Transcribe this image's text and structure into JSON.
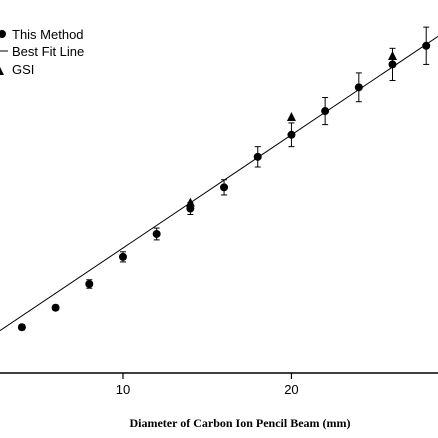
{
  "chart_data": {
    "type": "scatter",
    "xlabel": "Diameter of Carbon Ion Pencil Beam (mm)",
    "ylabel": "",
    "x_ticks": [
      10,
      20
    ],
    "xlim": [
      2.7,
      28.7
    ],
    "ylim": [
      0,
      22
    ],
    "grid": false,
    "legend_position": "top-left",
    "legend": [
      "This Method",
      "Best Fit Line",
      "GSI"
    ],
    "series": [
      {
        "name": "This Method",
        "marker": "circle",
        "points": [
          {
            "x": 4,
            "y": 2.7,
            "err": 0.15
          },
          {
            "x": 6,
            "y": 3.85,
            "err": 0.15
          },
          {
            "x": 8,
            "y": 5.25,
            "err": 0.25
          },
          {
            "x": 10,
            "y": 6.85,
            "err": 0.3
          },
          {
            "x": 12,
            "y": 8.2,
            "err": 0.35
          },
          {
            "x": 14,
            "y": 9.7,
            "err": 0.35
          },
          {
            "x": 16,
            "y": 10.95,
            "err": 0.45
          },
          {
            "x": 18,
            "y": 12.75,
            "err": 0.6
          },
          {
            "x": 20,
            "y": 14.05,
            "err": 0.7
          },
          {
            "x": 22,
            "y": 15.45,
            "err": 0.8
          },
          {
            "x": 24,
            "y": 16.85,
            "err": 0.85
          },
          {
            "x": 26,
            "y": 18.2,
            "err": 0.95
          },
          {
            "x": 28,
            "y": 19.3,
            "err": 1.1
          }
        ]
      },
      {
        "name": "Best Fit Line",
        "type": "line",
        "x": [
          2.7,
          28.7
        ],
        "y": [
          2.5,
          19.85
        ]
      },
      {
        "name": "GSI",
        "marker": "triangle",
        "points": [
          {
            "x": 14,
            "y": 10.05
          },
          {
            "x": 20,
            "y": 15.1
          },
          {
            "x": 26,
            "y": 18.7
          }
        ]
      }
    ]
  }
}
